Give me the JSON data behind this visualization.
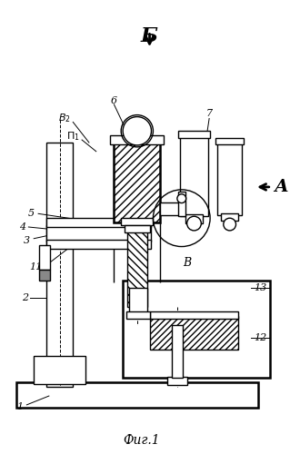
{
  "title": "Фиг.1",
  "label_B_arrow": "Б",
  "label_A_arrow": "А",
  "label_V_circle": "В",
  "bg_color": "#ffffff",
  "lw": 1.0,
  "lw2": 1.8
}
